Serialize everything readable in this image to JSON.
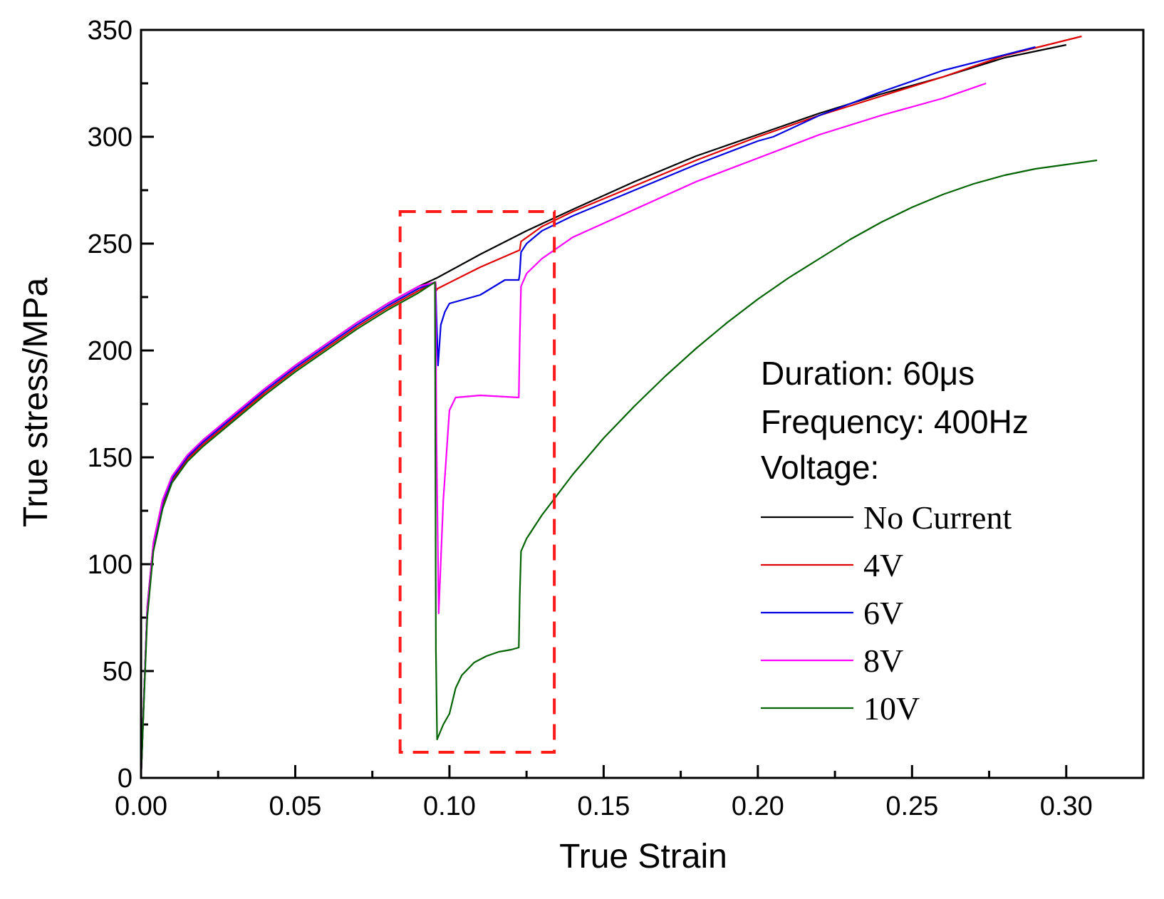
{
  "chart_data": {
    "type": "line",
    "title": "",
    "xlabel": "True Strain",
    "ylabel": "True stress/MPa",
    "xlim": [
      0,
      0.325
    ],
    "ylim": [
      0,
      350
    ],
    "xticks": [
      0.0,
      0.05,
      0.1,
      0.15,
      0.2,
      0.25,
      0.3
    ],
    "xtick_labels": [
      "0.00",
      "0.05",
      "0.10",
      "0.15",
      "0.20",
      "0.25",
      "0.30"
    ],
    "yticks": [
      0,
      50,
      100,
      150,
      200,
      250,
      300,
      350
    ],
    "ytick_labels": [
      "0",
      "50",
      "100",
      "150",
      "200",
      "250",
      "300",
      "350"
    ],
    "annotation": {
      "lines": [
        "Duration: 60μs",
        "Frequency: 400Hz",
        "Voltage:"
      ]
    },
    "highlight_box": {
      "x_range": [
        0.084,
        0.134
      ],
      "y_range": [
        12,
        265
      ],
      "color": "#ff1a1a",
      "style": "dashed"
    },
    "legend_position": "right",
    "series": [
      {
        "name": "No Current",
        "color": "#000000",
        "x": [
          0,
          0.001,
          0.002,
          0.004,
          0.007,
          0.01,
          0.015,
          0.02,
          0.03,
          0.04,
          0.05,
          0.06,
          0.07,
          0.08,
          0.09,
          0.096,
          0.11,
          0.125,
          0.14,
          0.16,
          0.18,
          0.2,
          0.22,
          0.24,
          0.26,
          0.28,
          0.3
        ],
        "y": [
          0,
          40,
          80,
          110,
          130,
          141,
          151,
          158,
          170,
          182,
          193,
          203,
          213,
          222,
          230,
          234,
          245,
          256,
          266,
          279,
          291,
          301,
          311,
          320,
          328,
          337,
          343
        ]
      },
      {
        "name": "4V",
        "color": "#e00000",
        "x": [
          0,
          0.001,
          0.002,
          0.004,
          0.007,
          0.01,
          0.015,
          0.02,
          0.03,
          0.04,
          0.05,
          0.06,
          0.07,
          0.08,
          0.09,
          0.0955,
          0.0957,
          0.0962,
          0.11,
          0.1228,
          0.1232,
          0.13,
          0.14,
          0.16,
          0.18,
          0.2,
          0.22,
          0.24,
          0.26,
          0.28,
          0.305
        ],
        "y": [
          0,
          40,
          78,
          108,
          128,
          139,
          149,
          156,
          168,
          180,
          191,
          201,
          211,
          220,
          228,
          232,
          228,
          229,
          239,
          247,
          251,
          258,
          265,
          277,
          289,
          300,
          310,
          319,
          328,
          338,
          347
        ]
      },
      {
        "name": "6V",
        "color": "#0000e0",
        "x": [
          0,
          0.001,
          0.002,
          0.004,
          0.007,
          0.01,
          0.015,
          0.02,
          0.03,
          0.04,
          0.05,
          0.06,
          0.07,
          0.08,
          0.09,
          0.0955,
          0.0958,
          0.0963,
          0.0972,
          0.0985,
          0.1,
          0.11,
          0.118,
          0.1225,
          0.1228,
          0.1232,
          0.125,
          0.13,
          0.14,
          0.16,
          0.18,
          0.2,
          0.205,
          0.22,
          0.24,
          0.26,
          0.29
        ],
        "y": [
          0,
          40,
          79,
          109,
          129,
          140,
          150,
          157,
          169,
          181,
          192,
          202,
          212,
          221,
          229,
          232,
          216,
          193,
          212,
          218,
          222,
          226,
          233,
          233,
          236,
          246,
          250,
          256,
          263,
          275,
          287,
          298,
          300,
          310,
          321,
          331,
          342
        ]
      },
      {
        "name": "8V",
        "color": "#ff00ff",
        "x": [
          0,
          0.001,
          0.002,
          0.004,
          0.007,
          0.01,
          0.015,
          0.02,
          0.03,
          0.04,
          0.05,
          0.06,
          0.07,
          0.08,
          0.09,
          0.0955,
          0.0958,
          0.0965,
          0.098,
          0.1,
          0.102,
          0.11,
          0.1225,
          0.1228,
          0.1232,
          0.125,
          0.13,
          0.14,
          0.16,
          0.18,
          0.2,
          0.22,
          0.24,
          0.26,
          0.274
        ],
        "y": [
          0,
          40,
          79,
          110,
          130,
          141,
          151,
          158,
          170,
          182,
          193,
          203,
          213,
          222,
          230,
          232,
          160,
          77,
          130,
          172,
          178,
          179,
          178,
          205,
          230,
          236,
          243,
          253,
          266,
          279,
          290,
          301,
          310,
          318,
          325
        ]
      },
      {
        "name": "10V",
        "color": "#006400",
        "x": [
          0,
          0.001,
          0.002,
          0.004,
          0.007,
          0.01,
          0.015,
          0.02,
          0.03,
          0.04,
          0.05,
          0.06,
          0.07,
          0.08,
          0.09,
          0.0953,
          0.0956,
          0.096,
          0.098,
          0.1,
          0.102,
          0.104,
          0.108,
          0.112,
          0.116,
          0.12,
          0.1225,
          0.1228,
          0.1232,
          0.125,
          0.13,
          0.14,
          0.15,
          0.16,
          0.17,
          0.18,
          0.19,
          0.2,
          0.21,
          0.22,
          0.23,
          0.24,
          0.25,
          0.26,
          0.27,
          0.28,
          0.29,
          0.3,
          0.31
        ],
        "y": [
          0,
          38,
          75,
          106,
          126,
          138,
          148,
          155,
          167,
          179,
          190,
          200,
          210,
          219,
          227,
          232,
          60,
          18,
          25,
          30,
          42,
          48,
          54,
          57,
          59,
          60,
          61,
          85,
          106,
          112,
          123,
          142,
          159,
          174,
          188,
          201,
          213,
          224,
          234,
          243,
          252,
          260,
          267,
          273,
          278,
          282,
          285,
          287,
          289
        ]
      }
    ]
  }
}
